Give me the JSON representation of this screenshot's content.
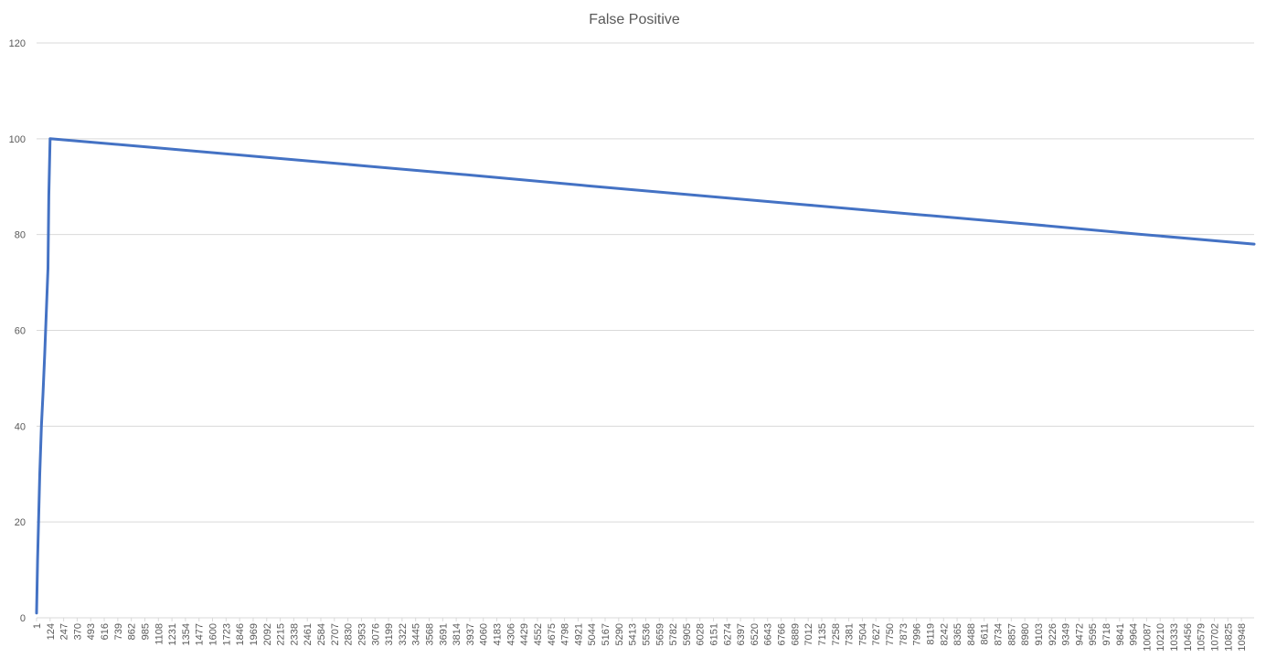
{
  "chart_data": {
    "type": "line",
    "title": "False Positive",
    "xlabel": "",
    "ylabel": "",
    "ylim": [
      0,
      120
    ],
    "y_ticks": [
      0,
      20,
      40,
      60,
      80,
      100,
      120
    ],
    "x_tick_labels": [
      "1",
      "124",
      "247",
      "370",
      "493",
      "616",
      "739",
      "862",
      "985",
      "1108",
      "1231",
      "1354",
      "1477",
      "1600",
      "1723",
      "1846",
      "1969",
      "2092",
      "2215",
      "2338",
      "2461",
      "2584",
      "2707",
      "2830",
      "2953",
      "3076",
      "3199",
      "3322",
      "3445",
      "3568",
      "3691",
      "3814",
      "3937",
      "4060",
      "4183",
      "4306",
      "4429",
      "4552",
      "4675",
      "4798",
      "4921",
      "5044",
      "5167",
      "5290",
      "5413",
      "5536",
      "5659",
      "5782",
      "5905",
      "6028",
      "6151",
      "6274",
      "6397",
      "6520",
      "6643",
      "6766",
      "6889",
      "7012",
      "7135",
      "7258",
      "7381",
      "7504",
      "7627",
      "7750",
      "7873",
      "7996",
      "8119",
      "8242",
      "8365",
      "8488",
      "8611",
      "8734",
      "8857",
      "8980",
      "9103",
      "9226",
      "9349",
      "9472",
      "9595",
      "9718",
      "9841",
      "9964",
      "10087",
      "10210",
      "10333",
      "10456",
      "10579",
      "10702",
      "10825",
      "10948"
    ],
    "x_range": [
      1,
      11060
    ],
    "gridlines": "horizontal",
    "legend": "none",
    "series": [
      {
        "color": "#4472c4",
        "x": [
          1,
          10,
          20,
          30,
          45,
          60,
          75,
          90,
          105,
          112,
          124,
          1000,
          2000,
          3000,
          4000,
          5000,
          6000,
          7000,
          8000,
          9000,
          10000,
          11060
        ],
        "y": [
          1,
          12,
          21,
          30,
          40,
          47,
          55,
          64,
          73,
          88,
          100,
          98.3,
          96.3,
          94.3,
          92.3,
          90.2,
          88.2,
          86.2,
          84.2,
          82.2,
          80.1,
          78.0
        ]
      }
    ]
  }
}
